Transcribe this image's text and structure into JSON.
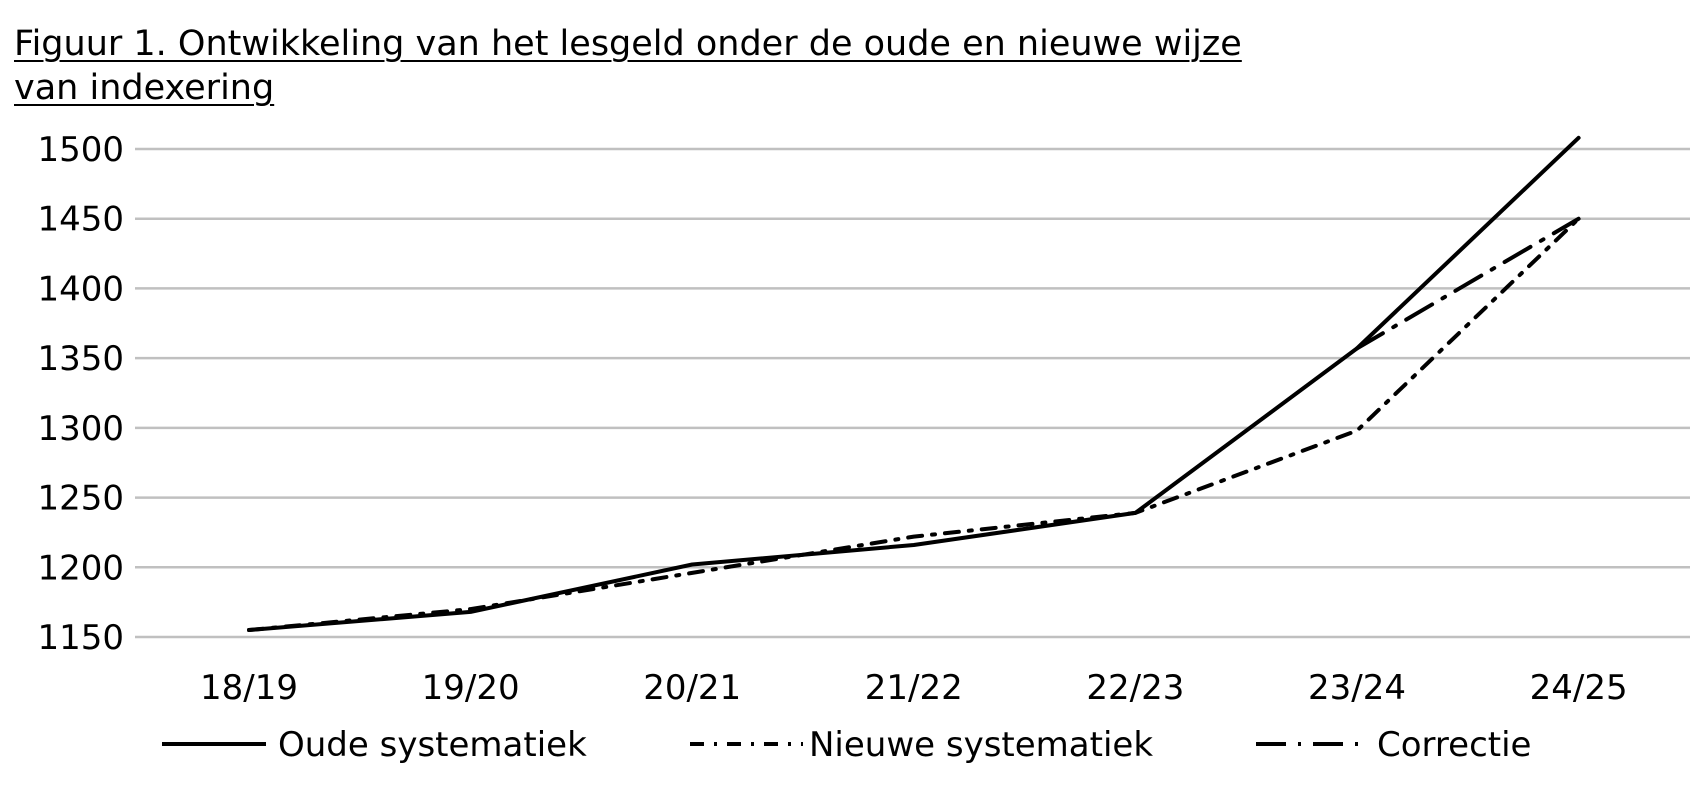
{
  "chart_data": {
    "type": "line",
    "title": "Figuur 1. Ontwikkeling van het lesgeld onder de oude en nieuwe wijze van indexering",
    "xlabel": "",
    "ylabel": "",
    "categories": [
      "18/19",
      "19/20",
      "20/21",
      "21/22",
      "22/23",
      "23/24",
      "24/25"
    ],
    "ylim": [
      1150,
      1500
    ],
    "yticks": [
      1150,
      1200,
      1250,
      1300,
      1350,
      1400,
      1450,
      1500
    ],
    "grid": true,
    "legend_position": "bottom",
    "series": [
      {
        "name": "Oude systematiek",
        "style": "solid",
        "color": "#000000",
        "values": [
          1155,
          1168,
          1202,
          1216,
          1239,
          1357,
          1508
        ]
      },
      {
        "name": "Nieuwe systematiek",
        "style": "dash-dot",
        "color": "#000000",
        "values": [
          1155,
          1170,
          1196,
          1222,
          1239,
          1298,
          1450
        ]
      },
      {
        "name": "Correctie",
        "style": "long-dash-dot",
        "color": "#000000",
        "values": [
          null,
          null,
          null,
          null,
          null,
          1357,
          1450
        ]
      }
    ],
    "gridline_color": "#c0c0c0"
  }
}
